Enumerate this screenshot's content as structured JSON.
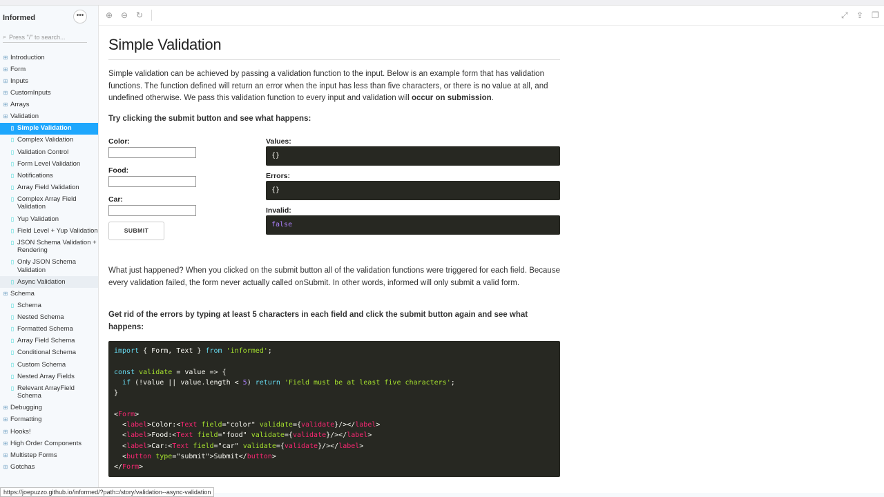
{
  "sidebar": {
    "brand": "Informed",
    "menu_icon": "ellipsis-icon",
    "search_placeholder": "Press \"/\" to search...",
    "items": [
      {
        "label": "Introduction",
        "level": 0
      },
      {
        "label": "Form",
        "level": 0
      },
      {
        "label": "Inputs",
        "level": 0
      },
      {
        "label": "CustomInputs",
        "level": 0
      },
      {
        "label": "Arrays",
        "level": 0
      },
      {
        "label": "Validation",
        "level": 0
      },
      {
        "label": "Simple Validation",
        "level": 1,
        "active": true
      },
      {
        "label": "Complex Validation",
        "level": 1
      },
      {
        "label": "Validation Control",
        "level": 1
      },
      {
        "label": "Form Level Validation",
        "level": 1
      },
      {
        "label": "Notifications",
        "level": 1
      },
      {
        "label": "Array Field Validation",
        "level": 1
      },
      {
        "label": "Complex Array Field Validation",
        "level": 1
      },
      {
        "label": "Yup Validation",
        "level": 1
      },
      {
        "label": "Field Level + Yup Validation",
        "level": 1
      },
      {
        "label": "JSON Schema Validation + Rendering",
        "level": 1
      },
      {
        "label": "Only JSON Schema Validation",
        "level": 1
      },
      {
        "label": "Async Validation",
        "level": 1,
        "hover": true
      },
      {
        "label": "Schema",
        "level": 0
      },
      {
        "label": "Schema",
        "level": 1
      },
      {
        "label": "Nested Schema",
        "level": 1
      },
      {
        "label": "Formatted Schema",
        "level": 1
      },
      {
        "label": "Array Field Schema",
        "level": 1
      },
      {
        "label": "Conditional Schema",
        "level": 1
      },
      {
        "label": "Custom Schema",
        "level": 1
      },
      {
        "label": "Nested Array Fields",
        "level": 1
      },
      {
        "label": "Relevant ArrayField Schema",
        "level": 1
      },
      {
        "label": "Debugging",
        "level": 0
      },
      {
        "label": "Formatting",
        "level": 0
      },
      {
        "label": "Hooks!",
        "level": 0
      },
      {
        "label": "High Order Components",
        "level": 0
      },
      {
        "label": "Multistep Forms",
        "level": 0
      },
      {
        "label": "Gotchas",
        "level": 0
      }
    ]
  },
  "toolbar": {
    "zoom_in": "zoom-in-icon",
    "zoom_out": "zoom-out-icon",
    "reset": "zoom-reset-icon",
    "fullscreen": "fullscreen-icon",
    "share": "share-icon",
    "copy": "copy-icon"
  },
  "main": {
    "title": "Simple Validation",
    "intro": "Simple validation can be achieved by passing a validation function to the input. Below is an example form that has validation functions. The function defined will return an error when the input has less than five characters, or there is no value at all, and undefined otherwise. We pass this validation function to every input and validation will ",
    "intro_bold": "occur on submission",
    "intro_end": ".",
    "try_text": "Try clicking the submit button and see what happens:",
    "form": {
      "color_label": "Color:",
      "food_label": "Food:",
      "car_label": "Car:",
      "color_value": "",
      "food_value": "",
      "car_value": "",
      "submit_label": "SUBMIT"
    },
    "state": {
      "values_label": "Values:",
      "values": "{}",
      "errors_label": "Errors:",
      "errors": "{}",
      "invalid_label": "Invalid:",
      "invalid": "false"
    },
    "what_happened": "What just happened? When you clicked on the submit button all of the validation functions were triggered for each field. Because every validation failed, the form never actually called onSubmit. In other words, informed will only submit a valid form.",
    "get_rid": "Get rid of the errors by typing at least 5 characters in each field and click the submit button again and see what happens:",
    "code": [
      [
        [
          "import",
          "k"
        ],
        [
          " { Form, Text } ",
          "p"
        ],
        [
          "from",
          "k"
        ],
        [
          " ",
          "p"
        ],
        [
          "'informed'",
          "s"
        ],
        [
          ";",
          "p"
        ]
      ],
      [],
      [
        [
          "const",
          "k"
        ],
        [
          " ",
          "p"
        ],
        [
          "validate",
          "a"
        ],
        [
          " = value => {",
          "p"
        ]
      ],
      [
        [
          "  ",
          "p"
        ],
        [
          "if",
          "k"
        ],
        [
          " (!value || value.length < ",
          "p"
        ],
        [
          "5",
          "n"
        ],
        [
          ") ",
          "p"
        ],
        [
          "return",
          "k"
        ],
        [
          " ",
          "p"
        ],
        [
          "'Field must be at least five characters'",
          "s"
        ],
        [
          ";",
          "p"
        ]
      ],
      [
        [
          "}",
          "p"
        ]
      ],
      [],
      [
        [
          "<",
          "p"
        ],
        [
          "Form",
          "t"
        ],
        [
          ">",
          "p"
        ]
      ],
      [
        [
          "  <",
          "p"
        ],
        [
          "label",
          "t"
        ],
        [
          ">Color:<",
          "p"
        ],
        [
          "Text",
          "t"
        ],
        [
          " ",
          "p"
        ],
        [
          "field",
          "a"
        ],
        [
          "=\"color\" ",
          "p"
        ],
        [
          "validate",
          "a"
        ],
        [
          "={",
          "p"
        ],
        [
          "validate",
          "t"
        ],
        [
          "}/></",
          "p"
        ],
        [
          "label",
          "t"
        ],
        [
          ">",
          "p"
        ]
      ],
      [
        [
          "  <",
          "p"
        ],
        [
          "label",
          "t"
        ],
        [
          ">Food:<",
          "p"
        ],
        [
          "Text",
          "t"
        ],
        [
          " ",
          "p"
        ],
        [
          "field",
          "a"
        ],
        [
          "=\"food\" ",
          "p"
        ],
        [
          "validate",
          "a"
        ],
        [
          "={",
          "p"
        ],
        [
          "validate",
          "t"
        ],
        [
          "}/></",
          "p"
        ],
        [
          "label",
          "t"
        ],
        [
          ">",
          "p"
        ]
      ],
      [
        [
          "  <",
          "p"
        ],
        [
          "label",
          "t"
        ],
        [
          ">Car:<",
          "p"
        ],
        [
          "Text",
          "t"
        ],
        [
          " ",
          "p"
        ],
        [
          "field",
          "a"
        ],
        [
          "=\"car\" ",
          "p"
        ],
        [
          "validate",
          "a"
        ],
        [
          "={",
          "p"
        ],
        [
          "validate",
          "t"
        ],
        [
          "}/></",
          "p"
        ],
        [
          "label",
          "t"
        ],
        [
          ">",
          "p"
        ]
      ],
      [
        [
          "  <",
          "p"
        ],
        [
          "button",
          "t"
        ],
        [
          " ",
          "p"
        ],
        [
          "type",
          "a"
        ],
        [
          "=\"submit\">Submit</",
          "p"
        ],
        [
          "button",
          "t"
        ],
        [
          ">",
          "p"
        ]
      ],
      [
        [
          "</",
          "p"
        ],
        [
          "Form",
          "t"
        ],
        [
          ">",
          "p"
        ]
      ]
    ]
  },
  "status_url": "https://joepuzzo.github.io/informed/?path=/story/validation--async-validation"
}
